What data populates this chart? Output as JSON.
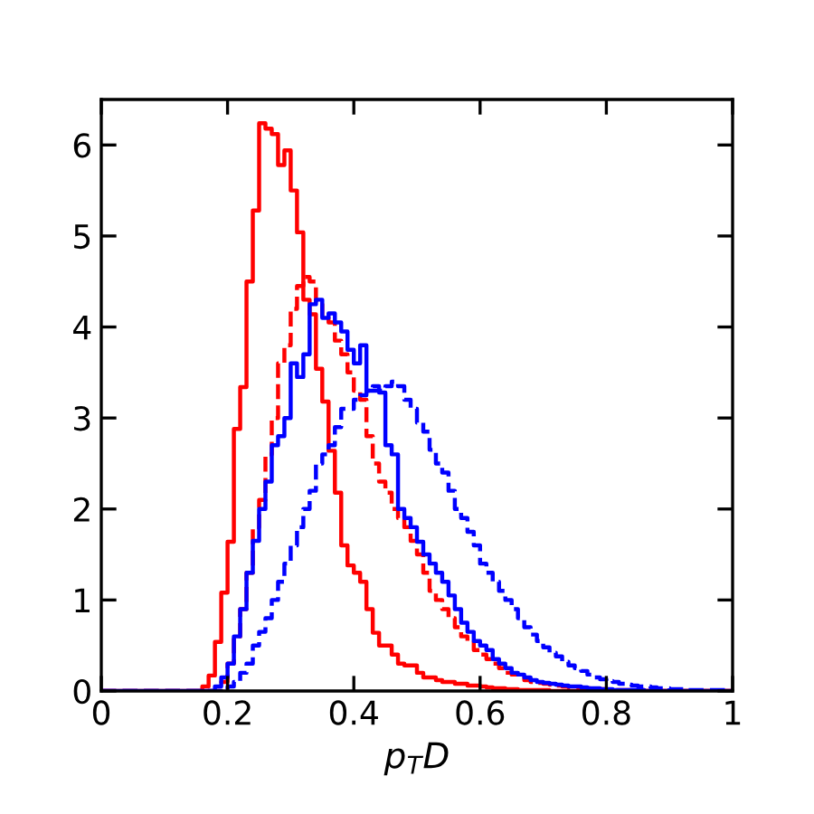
{
  "chart_data": {
    "type": "histogram",
    "xlabel": "p$_{T}$D",
    "xlim": [
      0,
      1
    ],
    "xticks": [
      0,
      0.2,
      0.4,
      0.6,
      0.8,
      1
    ],
    "ylim": [
      0,
      6.5
    ],
    "yticks": [
      0,
      1,
      2,
      3,
      4,
      5,
      6
    ],
    "bins": [
      0,
      0.01,
      0.02,
      0.03,
      0.04,
      0.05,
      0.06,
      0.07,
      0.08,
      0.09,
      0.1,
      0.11,
      0.12,
      0.13,
      0.14,
      0.15,
      0.16,
      0.17,
      0.18,
      0.19,
      0.2,
      0.21,
      0.22,
      0.23,
      0.24,
      0.25,
      0.26,
      0.27,
      0.28,
      0.29,
      0.3,
      0.31,
      0.32,
      0.33,
      0.34,
      0.35,
      0.36,
      0.37,
      0.38,
      0.39,
      0.4,
      0.41,
      0.42,
      0.43,
      0.44,
      0.45,
      0.46,
      0.47,
      0.48,
      0.49,
      0.5,
      0.51,
      0.52,
      0.53,
      0.54,
      0.55,
      0.56,
      0.57,
      0.58,
      0.59,
      0.6,
      0.61,
      0.62,
      0.63,
      0.64,
      0.65,
      0.66,
      0.67,
      0.68,
      0.69,
      0.7,
      0.71,
      0.72,
      0.73,
      0.74,
      0.75,
      0.76,
      0.77,
      0.78,
      0.79,
      0.8,
      0.81,
      0.82,
      0.83,
      0.84,
      0.85,
      0.86,
      0.87,
      0.88,
      0.89,
      0.9,
      0.91,
      0.92,
      0.93,
      0.94,
      0.95,
      0.96,
      0.97,
      0.98,
      0.99,
      1
    ],
    "series": [
      {
        "color": "#ff0000",
        "line_style": "solid",
        "values": [
          0,
          0,
          0,
          0,
          0,
          0,
          0,
          0,
          0,
          0,
          0,
          0,
          0,
          0,
          0,
          0,
          0.05,
          0.17,
          0.54,
          1.08,
          1.64,
          2.88,
          3.34,
          4.5,
          5.28,
          6.24,
          6.18,
          6.12,
          5.78,
          5.94,
          5.5,
          5.04,
          4.3,
          4.14,
          3.54,
          3.18,
          2.64,
          2.18,
          1.6,
          1.38,
          1.3,
          1.2,
          0.9,
          0.64,
          0.5,
          0.5,
          0.4,
          0.3,
          0.28,
          0.28,
          0.2,
          0.15,
          0.15,
          0.12,
          0.1,
          0.1,
          0.08,
          0.08,
          0.06,
          0.06,
          0.05,
          0.04,
          0.03,
          0.03,
          0.02,
          0.02,
          0.01,
          0.01,
          0.01,
          0.01,
          0.01,
          0,
          0,
          0,
          0,
          0,
          0,
          0,
          0,
          0,
          0,
          0,
          0,
          0,
          0,
          0,
          0,
          0,
          0,
          0,
          0,
          0,
          0,
          0,
          0,
          0,
          0,
          0,
          0,
          0
        ]
      },
      {
        "color": "#ff0000",
        "line_style": "dashed",
        "values": [
          0,
          0,
          0,
          0,
          0,
          0,
          0,
          0,
          0,
          0,
          0,
          0,
          0,
          0,
          0,
          0,
          0,
          0,
          0,
          0.1,
          0.3,
          0.6,
          0.9,
          1.3,
          1.8,
          2.1,
          2.6,
          3.0,
          3.6,
          3.8,
          4.2,
          4.45,
          4.55,
          4.5,
          4.25,
          4.1,
          4.05,
          3.85,
          3.7,
          3.5,
          3.3,
          3.2,
          2.8,
          2.5,
          2.3,
          2.18,
          2.0,
          1.9,
          1.8,
          1.65,
          1.5,
          1.3,
          1.1,
          1.0,
          0.9,
          0.8,
          0.7,
          0.6,
          0.55,
          0.45,
          0.4,
          0.35,
          0.3,
          0.25,
          0.2,
          0.18,
          0.15,
          0.12,
          0.1,
          0.09,
          0.08,
          0.07,
          0.06,
          0.05,
          0.04,
          0.04,
          0.03,
          0.03,
          0.02,
          0.02,
          0.01,
          0.01,
          0.01,
          0.01,
          0.01,
          0.01,
          0,
          0,
          0,
          0,
          0,
          0,
          0,
          0,
          0,
          0,
          0,
          0,
          0,
          0
        ]
      },
      {
        "color": "#0000ff",
        "line_style": "solid",
        "values": [
          0,
          0,
          0,
          0,
          0,
          0,
          0,
          0,
          0,
          0,
          0,
          0,
          0,
          0,
          0,
          0,
          0,
          0,
          0.05,
          0.15,
          0.3,
          0.6,
          0.9,
          1.3,
          1.65,
          2.0,
          2.3,
          2.7,
          2.8,
          3.0,
          3.6,
          3.45,
          3.7,
          4.25,
          4.3,
          4.1,
          4.15,
          4.05,
          3.95,
          3.75,
          3.6,
          3.8,
          3.3,
          3.3,
          3.28,
          2.7,
          2.6,
          2.0,
          1.9,
          1.8,
          1.64,
          1.5,
          1.4,
          1.3,
          1.2,
          1.05,
          0.9,
          0.75,
          0.65,
          0.55,
          0.5,
          0.45,
          0.35,
          0.3,
          0.25,
          0.2,
          0.18,
          0.15,
          0.12,
          0.1,
          0.09,
          0.08,
          0.07,
          0.06,
          0.05,
          0.05,
          0.04,
          0.03,
          0.03,
          0.02,
          0.02,
          0.01,
          0.01,
          0.01,
          0.01,
          0.01,
          0,
          0,
          0,
          0,
          0,
          0,
          0,
          0,
          0,
          0,
          0,
          0,
          0,
          0
        ]
      },
      {
        "color": "#0000ff",
        "line_style": "dashed",
        "values": [
          0,
          0,
          0,
          0,
          0,
          0,
          0,
          0,
          0,
          0,
          0,
          0,
          0,
          0,
          0,
          0,
          0,
          0,
          0,
          0,
          0.05,
          0.1,
          0.2,
          0.3,
          0.5,
          0.65,
          0.8,
          1.0,
          1.2,
          1.4,
          1.6,
          1.8,
          2.0,
          2.2,
          2.5,
          2.6,
          2.7,
          2.9,
          3.1,
          3.1,
          3.2,
          3.25,
          3.3,
          3.35,
          3.3,
          3.35,
          3.4,
          3.35,
          3.2,
          3.1,
          2.95,
          2.85,
          2.65,
          2.5,
          2.4,
          2.2,
          2.0,
          1.9,
          1.75,
          1.6,
          1.4,
          1.3,
          1.2,
          1.1,
          1.0,
          0.9,
          0.8,
          0.7,
          0.62,
          0.55,
          0.48,
          0.42,
          0.38,
          0.32,
          0.28,
          0.25,
          0.22,
          0.18,
          0.15,
          0.13,
          0.11,
          0.1,
          0.08,
          0.07,
          0.06,
          0.05,
          0.05,
          0.04,
          0.03,
          0.03,
          0.02,
          0.02,
          0.02,
          0.01,
          0.01,
          0.01,
          0.01,
          0.01,
          0.01,
          0.01
        ]
      }
    ]
  }
}
